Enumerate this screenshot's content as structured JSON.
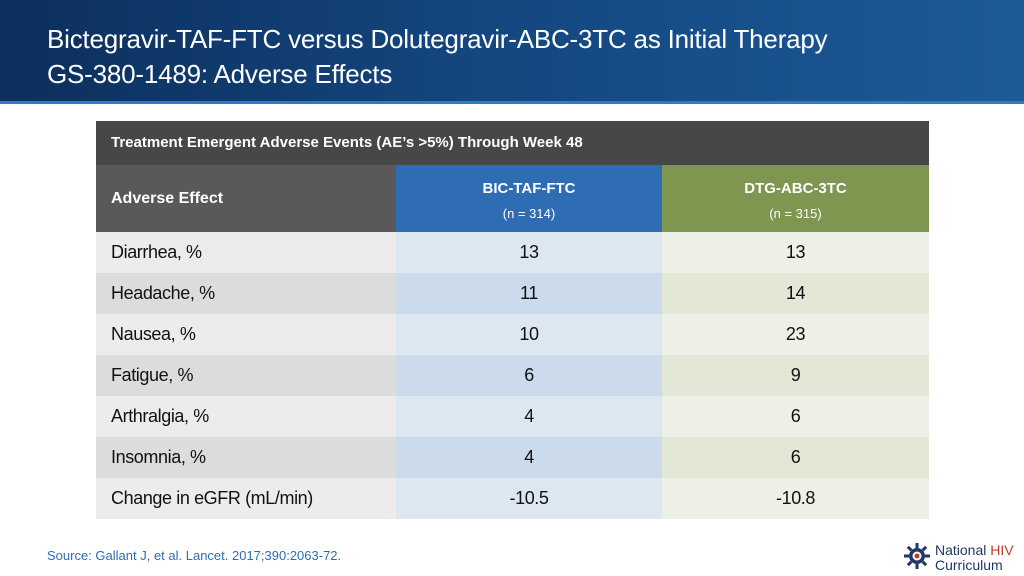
{
  "header": {
    "title_line1": "Bictegravir-TAF-FTC versus Dolutegravir-ABC-3TC as Initial Therapy",
    "title_line2": "GS-380-1489: Adverse Effects"
  },
  "table": {
    "caption": "Treatment Emergent Adverse Events (AE’s >5%) Through Week 48",
    "columns": [
      {
        "label": "Adverse Effect"
      },
      {
        "label": "BIC-TAF-FTC",
        "n": "(n = 314)",
        "color": "#2e6db4"
      },
      {
        "label": "DTG-ABC-3TC",
        "n": "(n = 315)",
        "color": "#7f9650"
      }
    ],
    "rows": [
      {
        "effect": "Diarrhea, %",
        "bic": "13",
        "dtg": "13"
      },
      {
        "effect": "Headache, %",
        "bic": "11",
        "dtg": "14"
      },
      {
        "effect": "Nausea, %",
        "bic": "10",
        "dtg": "23"
      },
      {
        "effect": "Fatigue, %",
        "bic": "6",
        "dtg": "9"
      },
      {
        "effect": "Arthralgia, %",
        "bic": "4",
        "dtg": "6"
      },
      {
        "effect": "Insomnia, %",
        "bic": "4",
        "dtg": "6"
      },
      {
        "effect": "Change in eGFR (mL/min)",
        "bic": "-10.5",
        "dtg": "-10.8"
      }
    ]
  },
  "footer": {
    "source": "Source: Gallant J, et al. Lancet. 2017;390:2063-72.",
    "logo_word1": "National",
    "logo_word2": "HIV",
    "logo_word3": "Curriculum",
    "logo_icon": "gear-emblem-icon"
  }
}
